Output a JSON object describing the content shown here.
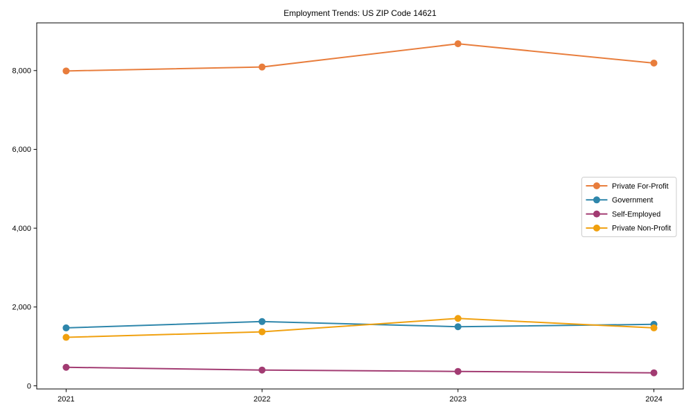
{
  "figure": {
    "background": "#ffffff"
  },
  "chart_data": {
    "type": "line",
    "title": "Employment Trends: US ZIP Code 14621",
    "categories": [
      "2021",
      "2022",
      "2023",
      "2024"
    ],
    "series": [
      {
        "name": "Private For-Profit",
        "color": "#E87D3C",
        "values": [
          7990,
          8090,
          8680,
          8190
        ]
      },
      {
        "name": "Government",
        "color": "#2E86AB",
        "values": [
          1470,
          1630,
          1500,
          1560
        ]
      },
      {
        "name": "Self-Employed",
        "color": "#A23B72",
        "values": [
          470,
          400,
          365,
          330
        ]
      },
      {
        "name": "Private Non-Profit",
        "color": "#F0A00E",
        "values": [
          1230,
          1370,
          1710,
          1470
        ]
      }
    ],
    "xlabel": "",
    "ylabel": "",
    "xtick_labels": [
      "2021",
      "2022",
      "2023",
      "2024"
    ],
    "yticks": [
      0,
      2000,
      4000,
      6000,
      8000
    ],
    "ytick_labels": [
      "0",
      "2,000",
      "4,000",
      "6,000",
      "8,000"
    ],
    "xlim": [
      2020.85,
      2024.15
    ],
    "ylim": [
      -80,
      9210
    ],
    "grid": false,
    "marker": "circle",
    "line_width": 2,
    "marker_radius": 5,
    "axis_color": "#000000",
    "text_color": "#000000",
    "legend": {
      "position": "center-right",
      "border_color": "#cccccc",
      "background": "#ffffff"
    }
  }
}
